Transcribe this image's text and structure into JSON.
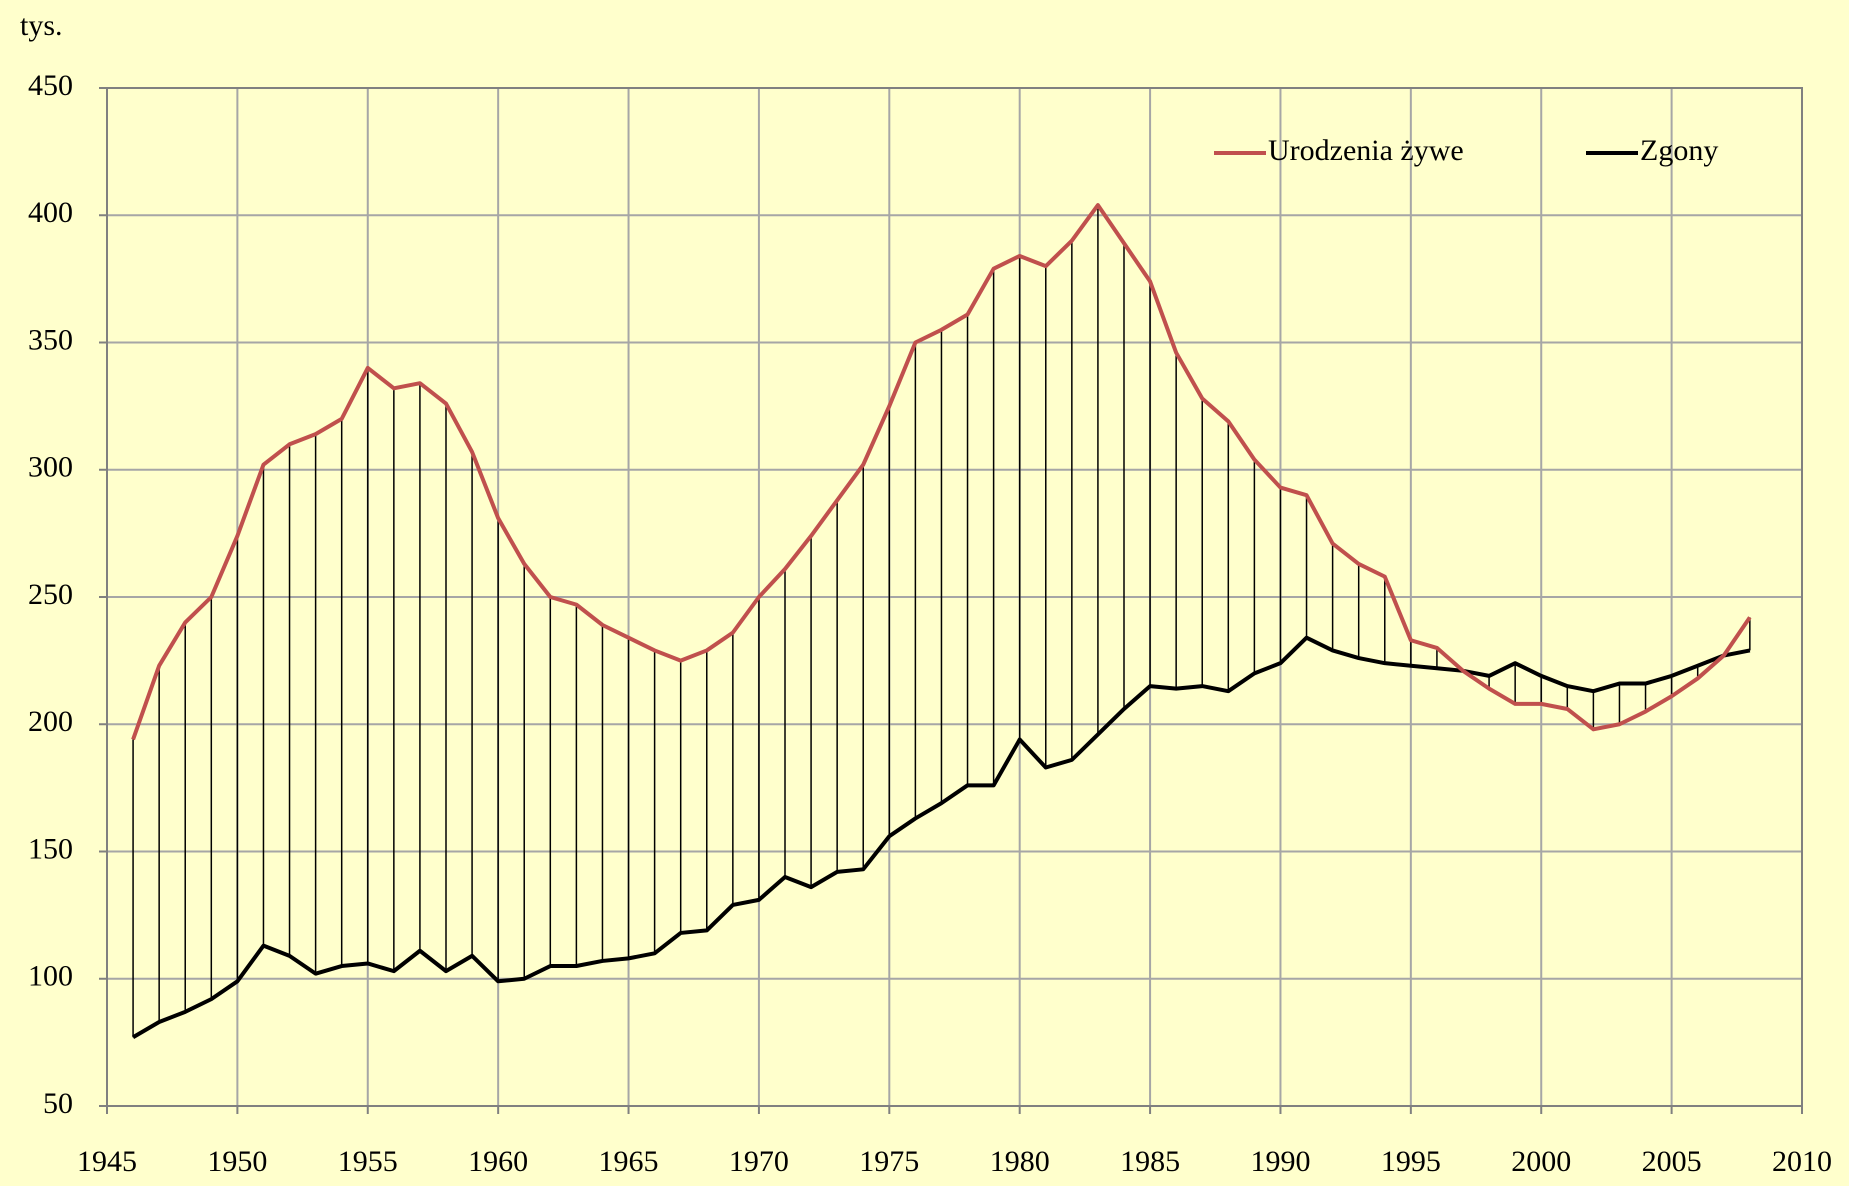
{
  "chart_data": {
    "type": "line",
    "y_unit": "tys.",
    "x": [
      1946,
      1947,
      1948,
      1949,
      1950,
      1951,
      1952,
      1953,
      1954,
      1955,
      1956,
      1957,
      1958,
      1959,
      1960,
      1961,
      1962,
      1963,
      1964,
      1965,
      1966,
      1967,
      1968,
      1969,
      1970,
      1971,
      1972,
      1973,
      1974,
      1975,
      1976,
      1977,
      1978,
      1979,
      1980,
      1981,
      1982,
      1983,
      1984,
      1985,
      1986,
      1987,
      1988,
      1989,
      1990,
      1991,
      1992,
      1993,
      1994,
      1995,
      1996,
      1997,
      1998,
      1999,
      2000,
      2001,
      2002,
      2003,
      2004,
      2005,
      2006,
      2007,
      2008
    ],
    "series": [
      {
        "name": "Urodzenia żywe",
        "color": "#c0504d",
        "values": [
          194,
          223,
          240,
          250,
          274,
          302,
          310,
          314,
          320,
          340,
          332,
          334,
          326,
          307,
          281,
          263,
          250,
          247,
          239,
          234,
          229,
          225,
          229,
          236,
          250,
          261,
          274,
          288,
          302,
          325,
          350,
          355,
          361,
          379,
          384,
          380,
          390,
          404,
          389,
          374,
          346,
          328,
          319,
          304,
          293,
          290,
          271,
          263,
          258,
          233,
          230,
          221,
          214,
          208,
          208,
          206,
          198,
          200,
          205,
          211,
          218,
          227,
          242
        ]
      },
      {
        "name": "Zgony",
        "color": "#000000",
        "values": [
          77,
          83,
          87,
          92,
          99,
          113,
          109,
          102,
          105,
          106,
          103,
          111,
          103,
          109,
          99,
          100,
          105,
          105,
          107,
          108,
          110,
          118,
          119,
          129,
          131,
          140,
          136,
          142,
          143,
          156,
          163,
          169,
          176,
          176,
          194,
          183,
          186,
          196,
          206,
          215,
          214,
          215,
          213,
          220,
          224,
          234,
          229,
          226,
          224,
          223,
          222,
          221,
          219,
          224,
          219,
          215,
          213,
          216,
          216,
          219,
          223,
          227,
          229
        ]
      }
    ],
    "xlim": [
      1945,
      2010
    ],
    "xticks": [
      1945,
      1950,
      1955,
      1960,
      1965,
      1970,
      1975,
      1980,
      1985,
      1990,
      1995,
      2000,
      2005,
      2010
    ],
    "ylim": [
      50,
      450
    ],
    "yticks": [
      50,
      100,
      150,
      200,
      250,
      300,
      350,
      400,
      450
    ],
    "grid": true,
    "legend": "top-right",
    "difference_lines": true
  }
}
